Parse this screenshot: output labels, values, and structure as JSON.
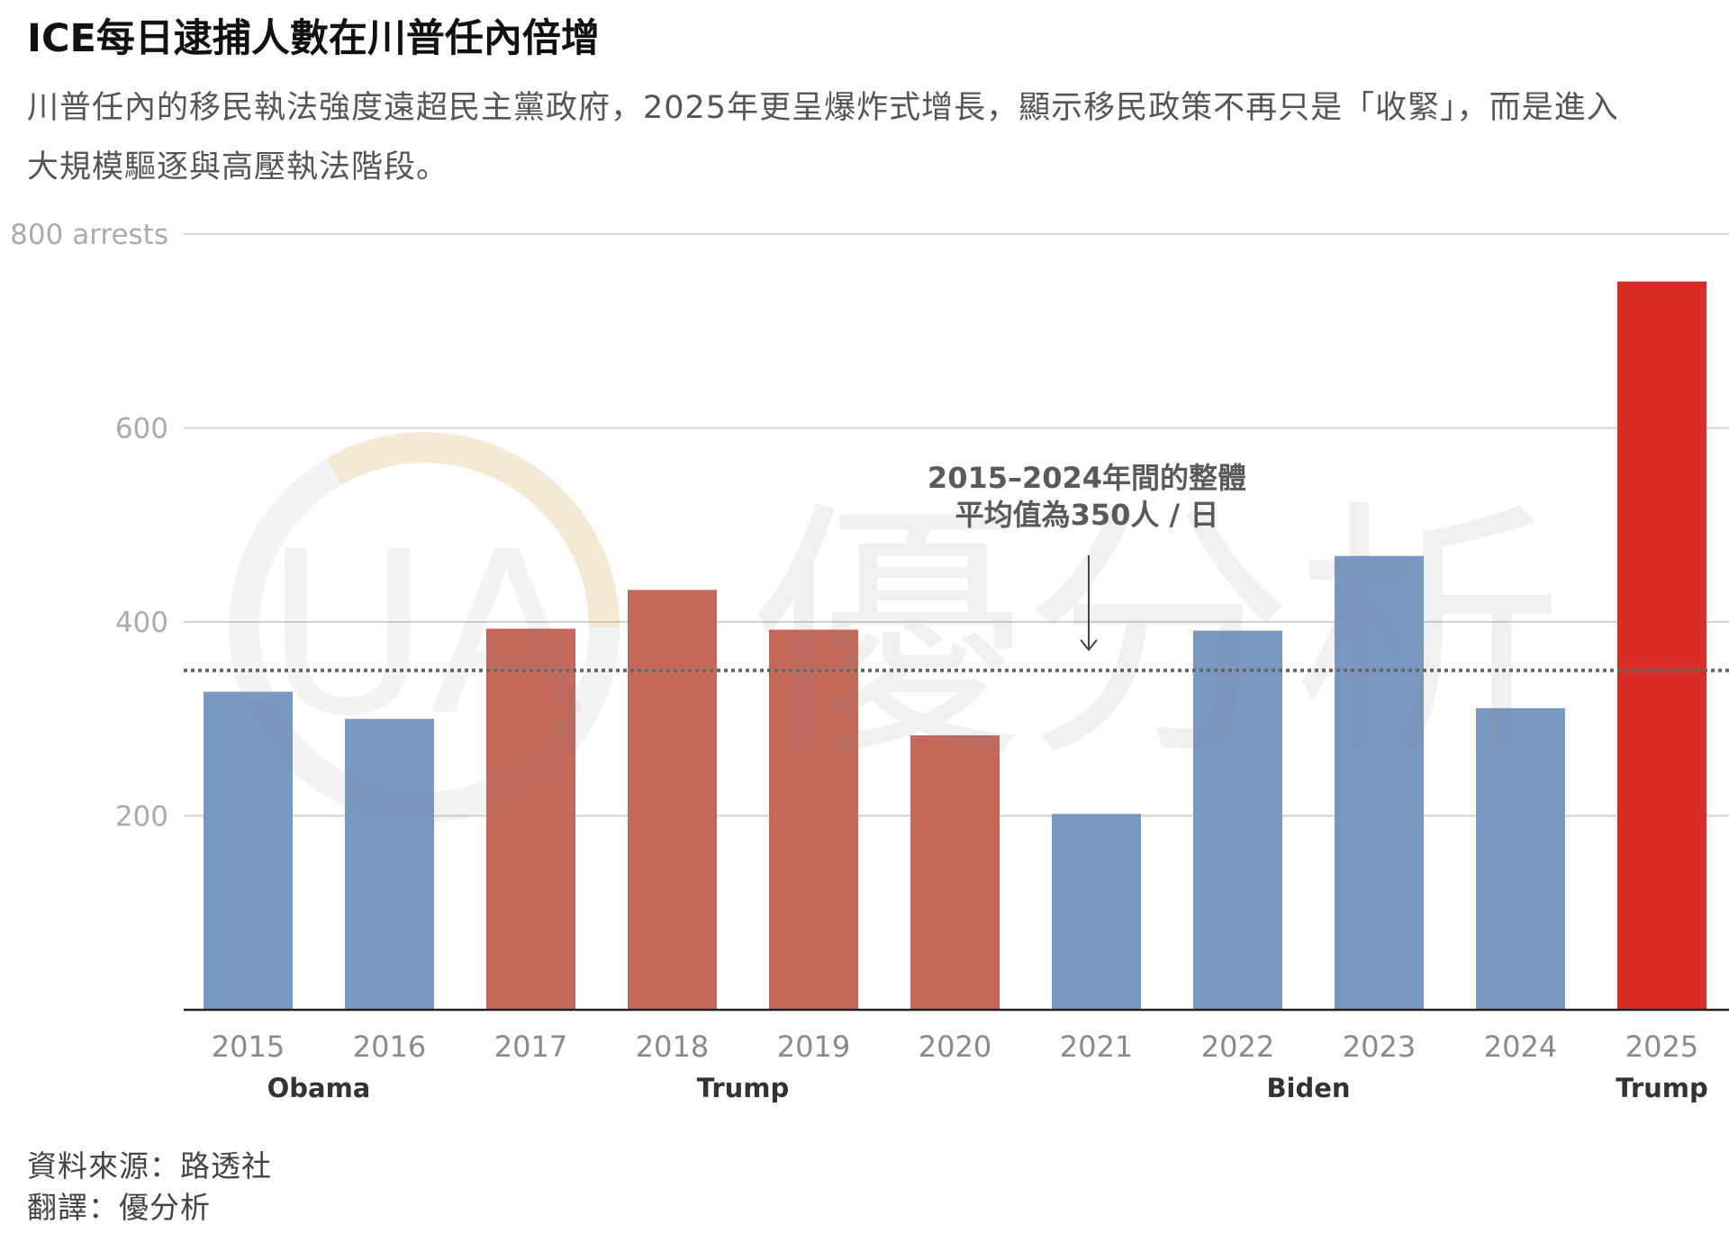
{
  "chart_data": {
    "type": "bar",
    "title": "ICE每日逮捕人數在川普任內倍增",
    "subtitle_lines": [
      "川普任內的移民執法強度遠超民主黨政府，2025年更呈爆炸式增長，顯示移民政策不再只是「收緊」，而是進入",
      "大規模驅逐與高壓執法階段。"
    ],
    "categories": [
      "2015",
      "2016",
      "2017",
      "2018",
      "2019",
      "2020",
      "2021",
      "2022",
      "2023",
      "2024",
      "2025"
    ],
    "values": [
      328,
      300,
      393,
      433,
      392,
      283,
      202,
      391,
      468,
      311,
      751
    ],
    "ylim": [
      0,
      800
    ],
    "y_ticks": [
      {
        "value": 200,
        "label": "200"
      },
      {
        "value": 400,
        "label": "400"
      },
      {
        "value": 600,
        "label": "600"
      },
      {
        "value": 800,
        "label": "800 arrests"
      }
    ],
    "grid": true,
    "eras": [
      {
        "label": "Obama",
        "from": 2015,
        "to": 2016,
        "color": "#7a99c2"
      },
      {
        "label": "Trump",
        "from": 2017,
        "to": 2020,
        "color": "#c4685a"
      },
      {
        "label": "Biden",
        "from": 2021,
        "to": 2024,
        "color": "#7a99c2"
      },
      {
        "label": "Trump",
        "from": 2025,
        "to": 2025,
        "color": "#da2c26"
      }
    ],
    "average": {
      "value": 350,
      "label_lines": [
        "2015–2024年間的整體",
        "平均值為350人 / 日"
      ],
      "color": "#666666"
    }
  },
  "footer": {
    "source": "資料來源：路透社",
    "translation": "翻譯：優分析"
  },
  "watermark": {
    "logo": "UA",
    "brand": "優分析"
  }
}
